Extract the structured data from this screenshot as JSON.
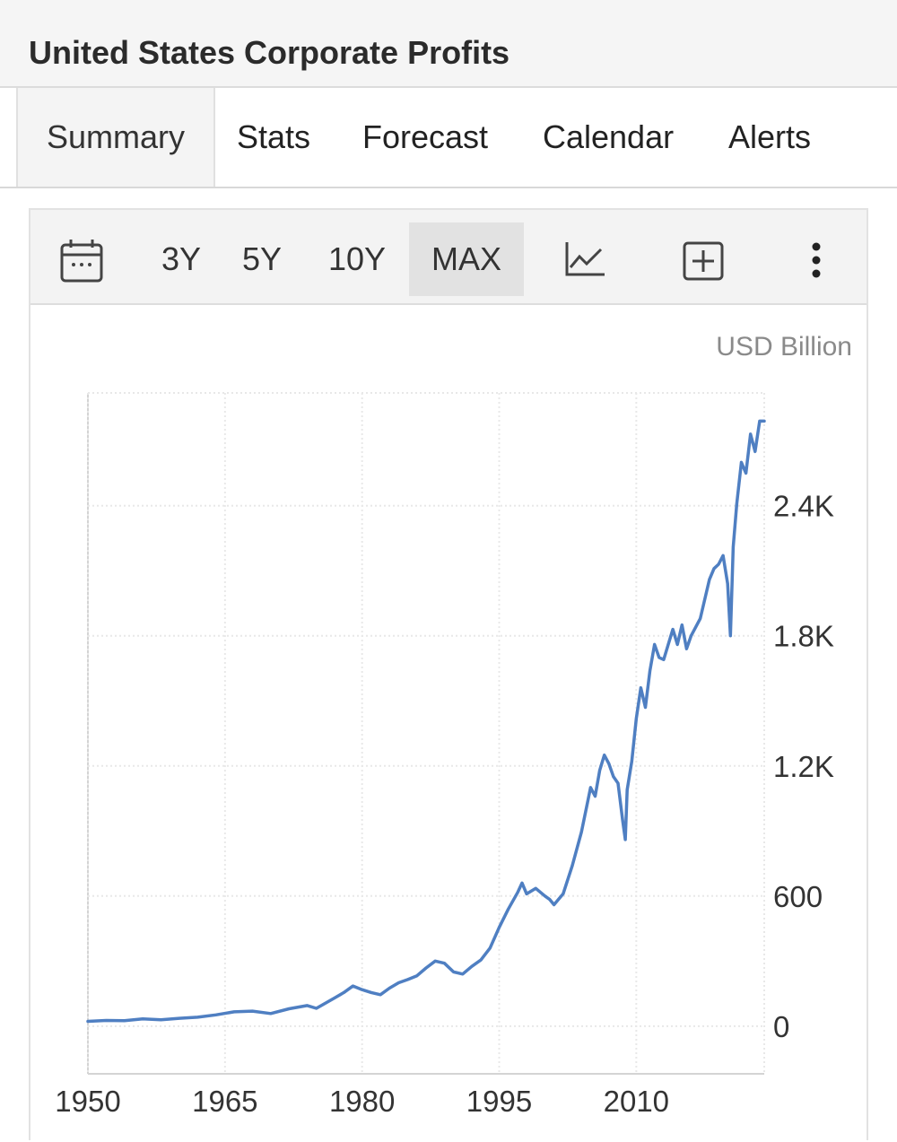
{
  "page": {
    "title": "United States Corporate Profits"
  },
  "tabs": [
    {
      "label": "Summary",
      "active": true
    },
    {
      "label": "Stats",
      "active": false
    },
    {
      "label": "Forecast",
      "active": false
    },
    {
      "label": "Calendar",
      "active": false
    },
    {
      "label": "Alerts",
      "active": false
    }
  ],
  "toolbar": {
    "ranges": [
      "3Y",
      "5Y",
      "10Y",
      "MAX"
    ],
    "selected_range": "MAX",
    "icons": [
      "calendar-icon",
      "line-chart-icon",
      "add-box-icon",
      "more-vertical-icon"
    ]
  },
  "colors": {
    "line": "#4f7fc2",
    "grid": "#e8e8e8",
    "axis_text": "#333333"
  },
  "chart_data": {
    "type": "line",
    "title": "",
    "unit_label": "USD Billion",
    "xlabel": "",
    "ylabel": "",
    "x_ticks": [
      "1950",
      "1965",
      "1980",
      "1995",
      "2010"
    ],
    "y_ticks": [
      "0",
      "600",
      "1.2K",
      "1.8K",
      "2.4K"
    ],
    "y_tick_values": [
      0,
      600,
      1200,
      1800,
      2400
    ],
    "xlim": [
      1950,
      2024
    ],
    "ylim": [
      -220,
      2920
    ],
    "grid": true,
    "series": [
      {
        "values": [
          [
            1950,
            22
          ],
          [
            1952,
            26
          ],
          [
            1954,
            25
          ],
          [
            1956,
            33
          ],
          [
            1958,
            29
          ],
          [
            1960,
            36
          ],
          [
            1962,
            41
          ],
          [
            1964,
            52
          ],
          [
            1966,
            66
          ],
          [
            1968,
            69
          ],
          [
            1970,
            58
          ],
          [
            1972,
            80
          ],
          [
            1974,
            95
          ],
          [
            1975,
            82
          ],
          [
            1977,
            130
          ],
          [
            1978,
            155
          ],
          [
            1979,
            185
          ],
          [
            1980,
            168
          ],
          [
            1981,
            155
          ],
          [
            1982,
            145
          ],
          [
            1983,
            175
          ],
          [
            1984,
            200
          ],
          [
            1985,
            215
          ],
          [
            1986,
            232
          ],
          [
            1987,
            268
          ],
          [
            1988,
            300
          ],
          [
            1989,
            290
          ],
          [
            1990,
            250
          ],
          [
            1991,
            240
          ],
          [
            1992,
            275
          ],
          [
            1993,
            305
          ],
          [
            1994,
            360
          ],
          [
            1995,
            455
          ],
          [
            1996,
            540
          ],
          [
            1997,
            615
          ],
          [
            1997.5,
            660
          ],
          [
            1998,
            610
          ],
          [
            1999,
            635
          ],
          [
            2000,
            600
          ],
          [
            2000.5,
            585
          ],
          [
            2001,
            560
          ],
          [
            2002,
            610
          ],
          [
            2003,
            740
          ],
          [
            2004,
            895
          ],
          [
            2005,
            1100
          ],
          [
            2005.5,
            1060
          ],
          [
            2006,
            1180
          ],
          [
            2006.5,
            1250
          ],
          [
            2007,
            1210
          ],
          [
            2007.5,
            1150
          ],
          [
            2008,
            1120
          ],
          [
            2008.5,
            950
          ],
          [
            2008.8,
            860
          ],
          [
            2009,
            1090
          ],
          [
            2009.5,
            1220
          ],
          [
            2010,
            1420
          ],
          [
            2010.5,
            1560
          ],
          [
            2011,
            1470
          ],
          [
            2011.5,
            1640
          ],
          [
            2012,
            1760
          ],
          [
            2012.5,
            1700
          ],
          [
            2013,
            1690
          ],
          [
            2013.5,
            1760
          ],
          [
            2014,
            1830
          ],
          [
            2014.5,
            1760
          ],
          [
            2015,
            1850
          ],
          [
            2015.5,
            1740
          ],
          [
            2016,
            1800
          ],
          [
            2017,
            1880
          ],
          [
            2018,
            2060
          ],
          [
            2018.5,
            2110
          ],
          [
            2019,
            2130
          ],
          [
            2019.5,
            2170
          ],
          [
            2020,
            2040
          ],
          [
            2020.3,
            1800
          ],
          [
            2020.6,
            2210
          ],
          [
            2021,
            2410
          ],
          [
            2021.5,
            2600
          ],
          [
            2022,
            2550
          ],
          [
            2022.5,
            2730
          ],
          [
            2023,
            2650
          ],
          [
            2023.5,
            2790
          ],
          [
            2024,
            2790
          ]
        ]
      }
    ]
  }
}
